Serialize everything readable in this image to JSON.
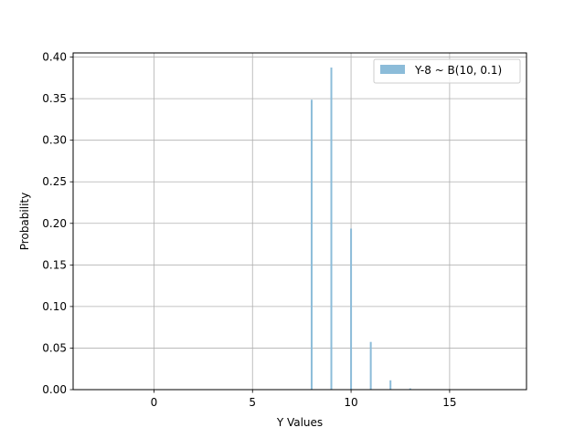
{
  "chart_data": {
    "type": "bar",
    "xlabel": "Y Values",
    "ylabel": "Probability",
    "xlim": [
      -4.1,
      18.9
    ],
    "ylim": [
      0,
      0.405
    ],
    "xticks": [
      0,
      5,
      10,
      15
    ],
    "yticks": [
      0.0,
      0.05,
      0.1,
      0.15,
      0.2,
      0.25,
      0.3,
      0.35,
      0.4
    ],
    "ytick_labels": [
      "0.00",
      "0.05",
      "0.10",
      "0.15",
      "0.20",
      "0.25",
      "0.30",
      "0.35",
      "0.40"
    ],
    "xtick_labels": [
      "0",
      "5",
      "10",
      "15"
    ],
    "grid": true,
    "legend_position": "top-right",
    "series": [
      {
        "name": "Y-8 ~ B(10, 0.1)",
        "color": "#8cbcd9",
        "x": [
          8,
          9,
          10,
          11,
          12,
          13,
          14,
          15,
          16,
          17,
          18
        ],
        "values": [
          0.3487,
          0.3874,
          0.1937,
          0.0574,
          0.0112,
          0.0015,
          0.0001,
          0.0,
          0.0,
          0.0,
          0.0
        ]
      }
    ]
  }
}
